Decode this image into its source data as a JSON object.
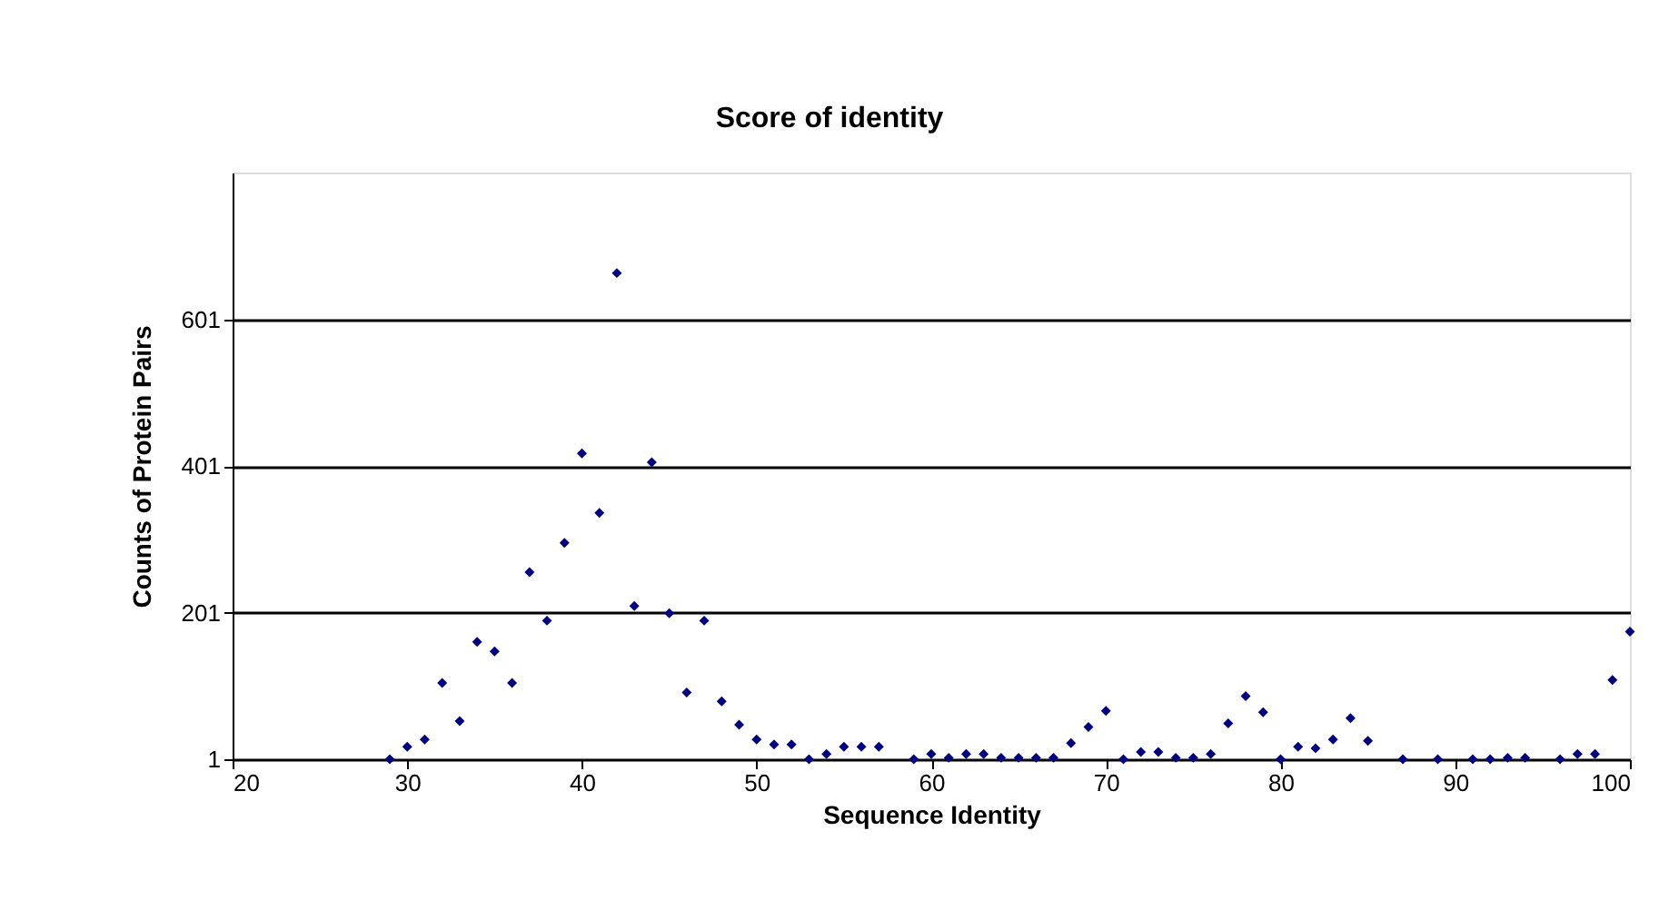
{
  "chart_data": {
    "type": "scatter",
    "title": "Score of identity",
    "xlabel": "Sequence Identity",
    "ylabel": "Counts of Protein Pairs",
    "x": [
      29,
      30,
      31,
      32,
      33,
      34,
      35,
      36,
      37,
      38,
      39,
      40,
      41,
      42,
      43,
      44,
      45,
      46,
      47,
      48,
      49,
      50,
      51,
      52,
      53,
      54,
      55,
      56,
      57,
      59,
      60,
      61,
      62,
      63,
      64,
      65,
      66,
      67,
      68,
      69,
      70,
      71,
      72,
      73,
      74,
      75,
      76,
      77,
      78,
      79,
      80,
      81,
      82,
      83,
      84,
      85,
      87,
      89,
      91,
      92,
      93,
      94,
      96,
      97,
      98,
      99,
      100
    ],
    "series": [
      {
        "color": "#000080",
        "values": [
          1,
          18,
          28,
          105,
          53,
          161,
          148,
          105,
          256,
          190,
          296,
          418,
          337,
          664,
          210,
          406,
          200,
          92,
          190,
          80,
          48,
          28,
          21,
          21,
          1,
          8,
          18,
          18,
          18,
          1,
          8,
          3,
          8,
          8,
          3,
          3,
          3,
          3,
          23,
          45,
          67,
          1,
          11,
          11,
          3,
          3,
          8,
          50,
          87,
          65,
          1,
          18,
          16,
          28,
          57,
          26,
          1,
          1,
          1,
          1,
          3,
          3,
          1,
          8,
          8,
          109,
          175
        ]
      }
    ],
    "xlim": [
      20,
      100
    ],
    "xticks": [
      20,
      30,
      40,
      50,
      60,
      70,
      80,
      90,
      100
    ],
    "ylim": [
      1,
      801
    ],
    "yticks": [
      1,
      201,
      401,
      601
    ],
    "grid": "y",
    "marker": "diamond",
    "legend": false
  }
}
